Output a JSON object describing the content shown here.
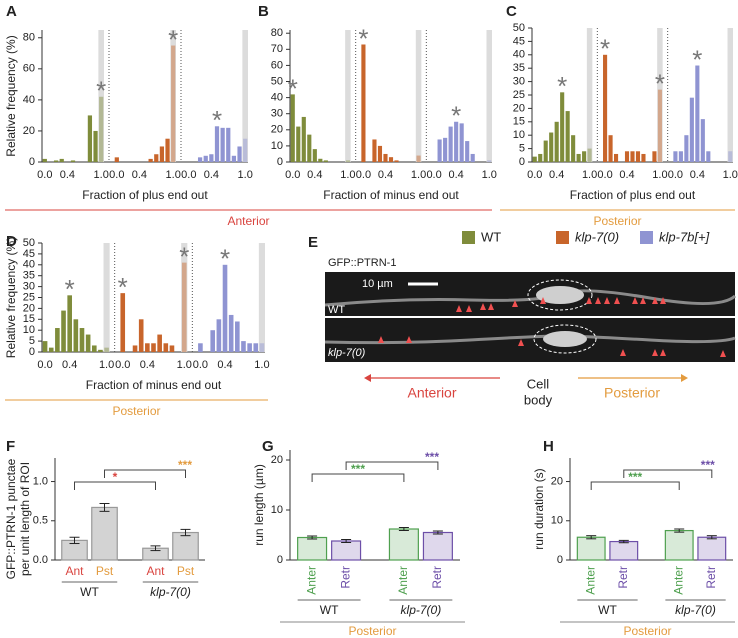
{
  "legend": [
    {
      "name": "WT",
      "color": "#7f8c3b"
    },
    {
      "name": "klp-7(0)",
      "color": "#c8652b"
    },
    {
      "name": "klp-7b[+]",
      "color": "#8f94d2"
    }
  ],
  "micrograph": {
    "label": "E",
    "title": "GFP::PTRN-1",
    "scale": "10 µm",
    "rows": [
      "WT",
      "klp-7(0)"
    ],
    "anterior": "Anterior",
    "cell_body": [
      "Cell",
      "body"
    ],
    "posterior": "Posterior"
  },
  "chart_data": [
    {
      "type": "bar",
      "label": "A",
      "ylabel": "Relative frequency (%)",
      "xlabel": "Fraction of plus end out",
      "x": [
        0,
        0.1,
        0.2,
        0.3,
        0.4,
        0.5,
        0.6,
        0.7,
        0.8,
        0.9,
        1.0
      ],
      "xlim": [
        -0.05,
        1.05
      ],
      "xticks": [
        {
          "value": 0,
          "label": "0.0"
        },
        {
          "value": 0.4,
          "label": "0.4"
        },
        {
          "value": 1,
          "label": "1.0"
        }
      ],
      "ylim": [
        0,
        85
      ],
      "yticks": [
        0,
        20,
        40,
        60,
        80
      ],
      "groups": [
        {
          "values": [
            2,
            0,
            1,
            2,
            0,
            1,
            0,
            0,
            30,
            20,
            42
          ]
        },
        {
          "values": [
            3,
            0,
            0,
            0,
            0,
            0,
            2,
            5,
            10,
            15,
            75
          ]
        },
        {
          "values": [
            0,
            0,
            3,
            4,
            5,
            23,
            22,
            22,
            4,
            10,
            15
          ]
        }
      ],
      "stars": [
        {
          "group": 0,
          "bin": 10,
          "text": "*"
        },
        {
          "group": 1,
          "bin": 10,
          "text": "*"
        },
        {
          "group": 2,
          "bin": 5,
          "text": "*"
        }
      ],
      "region": {
        "text": "Anterior",
        "color": "#d9443f"
      }
    },
    {
      "type": "bar",
      "label": "B",
      "xlabel": "Fraction of minus end out",
      "x": [
        0,
        0.1,
        0.2,
        0.3,
        0.4,
        0.5,
        0.6,
        0.7,
        0.8,
        0.9,
        1.0
      ],
      "xlim": [
        -0.05,
        1.05
      ],
      "xticks": [
        {
          "value": 0,
          "label": "0.0"
        },
        {
          "value": 0.4,
          "label": "0.4"
        },
        {
          "value": 1,
          "label": "1.0"
        }
      ],
      "ylim": [
        0,
        82
      ],
      "yticks": [
        0,
        10,
        20,
        30,
        40,
        50,
        60,
        70,
        80
      ],
      "groups": [
        {
          "values": [
            42,
            22,
            28,
            17,
            8,
            2,
            1,
            0,
            0,
            0,
            1
          ]
        },
        {
          "values": [
            73,
            0,
            14,
            10,
            5,
            3,
            1,
            0,
            0,
            0,
            4
          ]
        },
        {
          "values": [
            0,
            14,
            15,
            22,
            25,
            24,
            13,
            5,
            0,
            0,
            1
          ]
        }
      ],
      "stars": [
        {
          "group": 0,
          "bin": 0,
          "text": "*"
        },
        {
          "group": 1,
          "bin": 0,
          "text": "*"
        },
        {
          "group": 2,
          "bin": 4,
          "text": "*"
        }
      ]
    },
    {
      "type": "bar",
      "label": "C",
      "xlabel": "Fraction of plus end out",
      "x": [
        0,
        0.1,
        0.2,
        0.3,
        0.4,
        0.5,
        0.6,
        0.7,
        0.8,
        0.9,
        1.0
      ],
      "xlim": [
        -0.05,
        1.05
      ],
      "xticks": [
        {
          "value": 0,
          "label": "0.0"
        },
        {
          "value": 0.4,
          "label": "0.4"
        },
        {
          "value": 1,
          "label": "1.0"
        }
      ],
      "ylim": [
        0,
        50
      ],
      "yticks": [
        0,
        5,
        10,
        15,
        20,
        25,
        30,
        35,
        40,
        45,
        50
      ],
      "groups": [
        {
          "values": [
            2,
            3,
            8,
            11,
            15,
            26,
            19,
            10,
            3,
            4,
            5
          ]
        },
        {
          "values": [
            40,
            10,
            3,
            0,
            4,
            4,
            4,
            3,
            0,
            4,
            27
          ]
        },
        {
          "values": [
            4,
            4,
            10,
            24,
            36,
            16,
            4,
            0,
            0,
            0,
            4
          ]
        }
      ],
      "stars": [
        {
          "group": 0,
          "bin": 5,
          "text": "*"
        },
        {
          "group": 1,
          "bin": 0,
          "text": "*"
        },
        {
          "group": 1,
          "bin": 10,
          "text": "*"
        },
        {
          "group": 2,
          "bin": 4,
          "text": "*"
        }
      ],
      "region": {
        "text": "Posterior",
        "color": "#e39b3e"
      }
    },
    {
      "type": "bar",
      "label": "D",
      "ylabel": "Relative frequency (%)",
      "xlabel": "Fraction of minus end out",
      "x": [
        0,
        0.1,
        0.2,
        0.3,
        0.4,
        0.5,
        0.6,
        0.7,
        0.8,
        0.9,
        1.0
      ],
      "xlim": [
        -0.05,
        1.05
      ],
      "xticks": [
        {
          "value": 0,
          "label": "0.0"
        },
        {
          "value": 0.4,
          "label": "0.4"
        },
        {
          "value": 1,
          "label": "1.0"
        }
      ],
      "ylim": [
        0,
        50
      ],
      "yticks": [
        0,
        5,
        10,
        15,
        20,
        25,
        30,
        35,
        40,
        45,
        50
      ],
      "groups": [
        {
          "values": [
            5,
            2,
            11,
            19,
            26,
            15,
            11,
            8,
            3,
            1,
            2
          ]
        },
        {
          "values": [
            27,
            0,
            3,
            15,
            4,
            4,
            8,
            4,
            3,
            0,
            41
          ]
        },
        {
          "values": [
            4,
            0,
            10,
            15,
            40,
            17,
            14,
            5,
            4,
            4,
            4
          ]
        }
      ],
      "stars": [
        {
          "group": 0,
          "bin": 4,
          "text": "*"
        },
        {
          "group": 1,
          "bin": 0,
          "text": "*"
        },
        {
          "group": 1,
          "bin": 10,
          "text": "*"
        },
        {
          "group": 2,
          "bin": 4,
          "text": "*"
        }
      ],
      "region": {
        "text": "Posterior",
        "color": "#e39b3e"
      }
    },
    {
      "type": "column",
      "label": "F",
      "ylabel": [
        "GFP::PTRN-1 punctae",
        "per unit length of ROI"
      ],
      "categories": [
        "Ant",
        "Pst",
        "Ant",
        "Pst"
      ],
      "category_colors": [
        "#d9443f",
        "#e39b3e",
        "#d9443f",
        "#e39b3e"
      ],
      "values": [
        0.25,
        0.67,
        0.15,
        0.35
      ],
      "errors": [
        0.04,
        0.05,
        0.03,
        0.04
      ],
      "bar_color": "#d3d3d3",
      "ylim": [
        0,
        1.3
      ],
      "yticks": [
        {
          "value": 0,
          "label": "0.0"
        },
        {
          "value": 0.5,
          "label": "0.5"
        },
        {
          "value": 1,
          "label": "1.0"
        }
      ],
      "groups": [
        "WT",
        "klp-7(0)"
      ],
      "significance": [
        {
          "from": 0,
          "to": 2,
          "text": "*",
          "color": "#d9443f"
        },
        {
          "from": 1,
          "to": 3,
          "text": "***",
          "color": "#e39b3e"
        }
      ]
    },
    {
      "type": "column",
      "label": "G",
      "ylabel": "run length (µm)",
      "categories": [
        "Anter",
        "Retr",
        "Anter",
        "Retr"
      ],
      "category_colors": [
        "#4fa04f",
        "#6d4fa8",
        "#4fa04f",
        "#6d4fa8"
      ],
      "values": [
        4.5,
        3.8,
        6.2,
        5.5
      ],
      "errors": [
        0.3,
        0.3,
        0.3,
        0.3
      ],
      "ylim": [
        0,
        22
      ],
      "yticks": [
        0,
        10,
        20
      ],
      "groups": [
        "WT",
        "klp-7(0)"
      ],
      "region": {
        "text": "Posterior",
        "color": "#e39b3e"
      },
      "significance": [
        {
          "from": 0,
          "to": 2,
          "text": "***",
          "color": "#4fa04f"
        },
        {
          "from": 1,
          "to": 3,
          "text": "***",
          "color": "#6d4fa8"
        }
      ]
    },
    {
      "type": "column",
      "label": "H",
      "ylabel": "run duration (s)",
      "categories": [
        "Anter",
        "Retr",
        "Anter",
        "Retr"
      ],
      "category_colors": [
        "#4fa04f",
        "#6d4fa8",
        "#4fa04f",
        "#6d4fa8"
      ],
      "values": [
        5.8,
        4.7,
        7.5,
        5.8
      ],
      "errors": [
        0.4,
        0.3,
        0.4,
        0.4
      ],
      "ylim": [
        0,
        26
      ],
      "yticks": [
        0,
        10,
        20
      ],
      "groups": [
        "WT",
        "klp-7(0)"
      ],
      "region": {
        "text": "Posterior",
        "color": "#e39b3e"
      },
      "significance": [
        {
          "from": 0,
          "to": 2,
          "text": "***",
          "color": "#4fa04f"
        },
        {
          "from": 1,
          "to": 3,
          "text": "***",
          "color": "#6d4fa8"
        }
      ]
    }
  ]
}
